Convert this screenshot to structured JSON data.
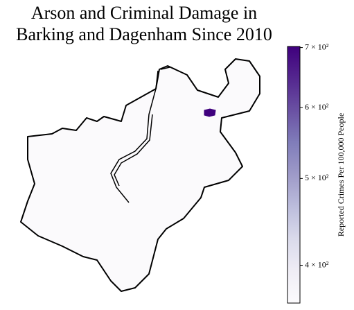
{
  "chart_data": {
    "type": "choropleth",
    "title": [
      "Arson and Criminal Damage in",
      "Barking and Dagenham Since 2010"
    ],
    "colorbar_label": "Reported Crimes Per 100,000 People",
    "values": [
      365,
      700
    ],
    "clim": [
      363,
      702
    ],
    "log_scale": true,
    "colormap": [
      "#fcfbfd",
      "#efedf5",
      "#dadaeb",
      "#bcbddc",
      "#9e9ac8",
      "#807dba",
      "#6a51a3",
      "#54278f",
      "#3f007d"
    ],
    "cticks": [
      {
        "value": 400,
        "label": "4 × 10²"
      },
      {
        "value": 500,
        "label": "5 × 10²"
      },
      {
        "value": 600,
        "label": "6 × 10²"
      },
      {
        "value": 700,
        "label": "7 × 10²"
      }
    ]
  }
}
